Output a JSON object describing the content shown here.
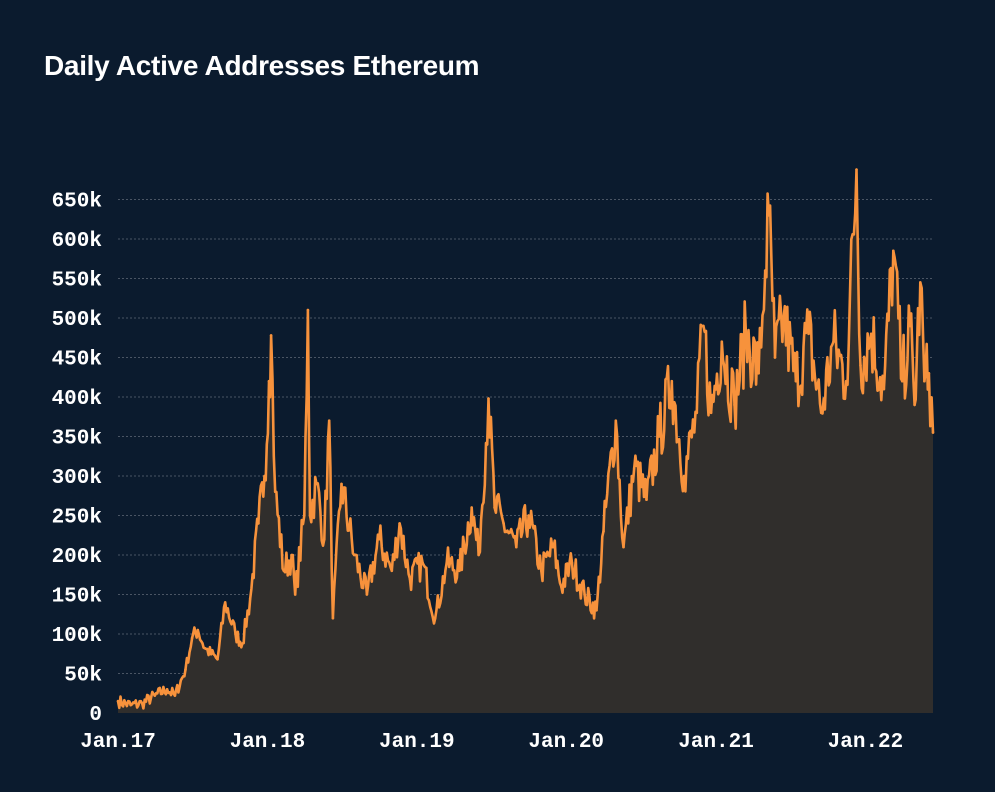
{
  "title": "Daily Active Addresses Ethereum",
  "colors": {
    "background": "#0b1b2e",
    "line": "#f7923c",
    "area": "#302e2c",
    "grid": "#4a5564",
    "text": "#ffffff"
  },
  "chart_data": {
    "type": "area",
    "title": "Daily Active Addresses Ethereum",
    "xlabel": "",
    "ylabel": "",
    "ylim": [
      0,
      700000
    ],
    "y_ticks": [
      "0",
      "50k",
      "100k",
      "150k",
      "200k",
      "250k",
      "300k",
      "350k",
      "400k",
      "450k",
      "500k",
      "550k",
      "600k",
      "650k"
    ],
    "x_ticks": [
      "Jan.17",
      "Jan.18",
      "Jan.19",
      "Jan.20",
      "Jan.21",
      "Jan.22"
    ],
    "grid": true,
    "x_range": [
      "2017-01-01",
      "2022-06-15"
    ],
    "series": [
      {
        "values": [
          [
            "2017-01-01",
            15000
          ],
          [
            "2017-02-01",
            10000
          ],
          [
            "2017-03-01",
            12000
          ],
          [
            "2017-04-01",
            22000
          ],
          [
            "2017-05-01",
            30000
          ],
          [
            "2017-05-20",
            22000
          ],
          [
            "2017-06-15",
            55000
          ],
          [
            "2017-07-01",
            95000
          ],
          [
            "2017-07-15",
            105000
          ],
          [
            "2017-08-01",
            82000
          ],
          [
            "2017-09-01",
            68000
          ],
          [
            "2017-09-20",
            140000
          ],
          [
            "2017-10-15",
            100000
          ],
          [
            "2017-11-01",
            88000
          ],
          [
            "2017-11-20",
            145000
          ],
          [
            "2017-12-10",
            240000
          ],
          [
            "2017-12-25",
            300000
          ],
          [
            "2018-01-05",
            420000
          ],
          [
            "2018-01-10",
            478000
          ],
          [
            "2018-01-20",
            280000
          ],
          [
            "2018-02-10",
            180000
          ],
          [
            "2018-03-01",
            200000
          ],
          [
            "2018-03-10",
            150000
          ],
          [
            "2018-04-01",
            250000
          ],
          [
            "2018-04-10",
            510000
          ],
          [
            "2018-04-15",
            250000
          ],
          [
            "2018-05-01",
            290000
          ],
          [
            "2018-05-20",
            220000
          ],
          [
            "2018-06-01",
            370000
          ],
          [
            "2018-06-10",
            120000
          ],
          [
            "2018-07-01",
            290000
          ],
          [
            "2018-08-01",
            200000
          ],
          [
            "2018-09-01",
            150000
          ],
          [
            "2018-10-01",
            220000
          ],
          [
            "2018-11-01",
            180000
          ],
          [
            "2018-11-20",
            240000
          ],
          [
            "2018-12-15",
            170000
          ],
          [
            "2019-01-15",
            190000
          ],
          [
            "2019-02-15",
            120000
          ],
          [
            "2019-03-15",
            190000
          ],
          [
            "2019-04-15",
            180000
          ],
          [
            "2019-05-15",
            260000
          ],
          [
            "2019-06-01",
            200000
          ],
          [
            "2019-06-25",
            398000
          ],
          [
            "2019-07-10",
            260000
          ],
          [
            "2019-08-01",
            240000
          ],
          [
            "2019-09-01",
            210000
          ],
          [
            "2019-10-01",
            250000
          ],
          [
            "2019-11-01",
            180000
          ],
          [
            "2019-12-01",
            210000
          ],
          [
            "2019-12-20",
            160000
          ],
          [
            "2020-01-15",
            190000
          ],
          [
            "2020-02-15",
            150000
          ],
          [
            "2020-03-15",
            130000
          ],
          [
            "2020-04-01",
            230000
          ],
          [
            "2020-05-01",
            370000
          ],
          [
            "2020-05-20",
            210000
          ],
          [
            "2020-06-15",
            310000
          ],
          [
            "2020-07-15",
            270000
          ],
          [
            "2020-08-15",
            350000
          ],
          [
            "2020-09-15",
            420000
          ],
          [
            "2020-10-15",
            300000
          ],
          [
            "2020-11-15",
            380000
          ],
          [
            "2020-12-01",
            490000
          ],
          [
            "2020-12-20",
            380000
          ],
          [
            "2021-01-15",
            470000
          ],
          [
            "2021-02-15",
            390000
          ],
          [
            "2021-03-15",
            480000
          ],
          [
            "2021-04-15",
            430000
          ],
          [
            "2021-05-01",
            560000
          ],
          [
            "2021-05-10",
            630000
          ],
          [
            "2021-05-25",
            450000
          ],
          [
            "2021-06-15",
            500000
          ],
          [
            "2021-07-15",
            420000
          ],
          [
            "2021-08-15",
            480000
          ],
          [
            "2021-09-15",
            380000
          ],
          [
            "2021-10-15",
            470000
          ],
          [
            "2021-11-15",
            420000
          ],
          [
            "2021-12-10",
            688000
          ],
          [
            "2021-12-20",
            440000
          ],
          [
            "2022-01-15",
            480000
          ],
          [
            "2022-02-15",
            410000
          ],
          [
            "2022-03-10",
            585000
          ],
          [
            "2022-04-01",
            420000
          ],
          [
            "2022-04-20",
            490000
          ],
          [
            "2022-05-01",
            390000
          ],
          [
            "2022-05-15",
            545000
          ],
          [
            "2022-05-25",
            420000
          ],
          [
            "2022-06-05",
            430000
          ],
          [
            "2022-06-15",
            355000
          ]
        ]
      }
    ]
  }
}
